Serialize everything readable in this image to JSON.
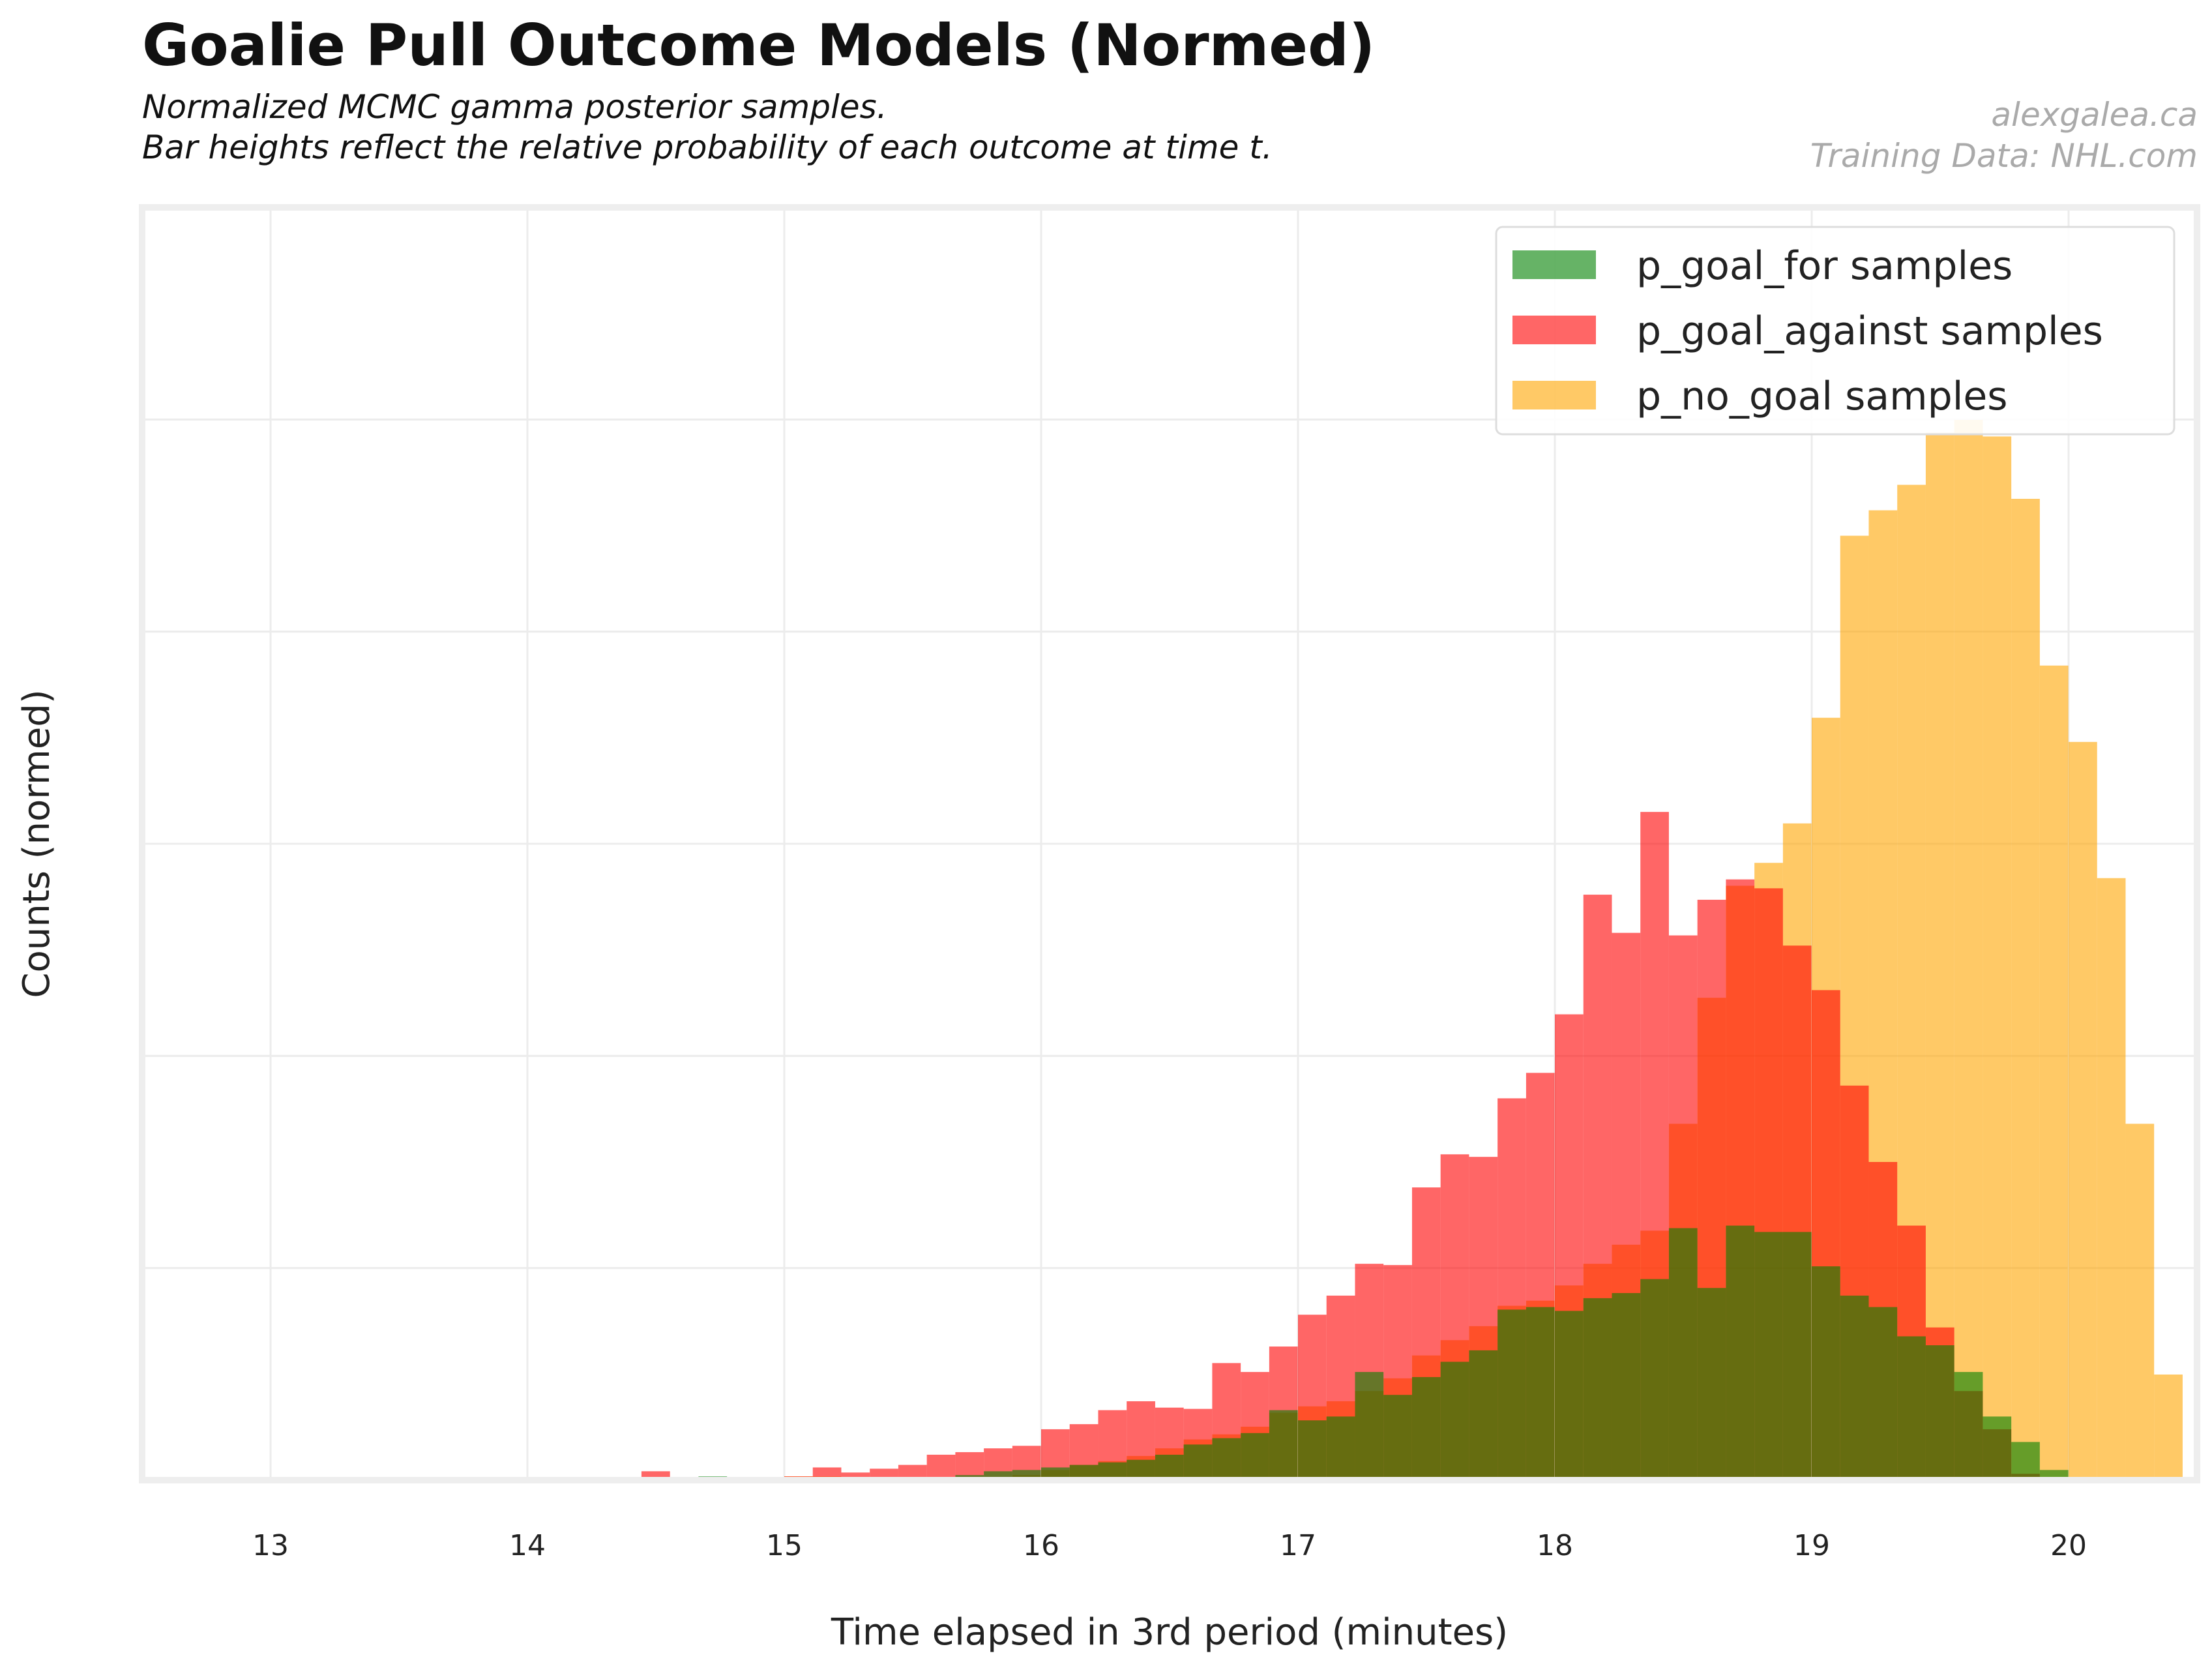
{
  "header": {
    "title": "Goalie Pull Outcome Models (Normed)",
    "subtitle_line1": "Normalized MCMC gamma posterior samples.",
    "subtitle_line2": "Bar heights reflect the relative probability of each outcome at time t.",
    "credit_line1": "alexgalea.ca",
    "credit_line2": "Training Data: NHL.com"
  },
  "chart_data": {
    "type": "bar",
    "subtype": "overlapping-step-histogram",
    "xlabel": "Time elapsed in 3rd period (minutes)",
    "ylabel": "Counts (normed)",
    "xlim": [
      12.5,
      20.5
    ],
    "ylim": [
      0,
      1.0
    ],
    "x_ticks": [
      "13",
      "14",
      "15",
      "16",
      "17",
      "18",
      "19",
      "20"
    ],
    "y_ticks_shown": false,
    "y_gridlines": [
      0.1667,
      0.3333,
      0.5,
      0.6667,
      0.8333
    ],
    "grid": true,
    "legend_position": "top-right",
    "bin_width": 0.111,
    "series": [
      {
        "name": "p_no_goal samples",
        "color": "#ffa500",
        "opacity": 0.6,
        "bins": [
          [
            15.0,
            0.003
          ],
          [
            15.111,
            0.003
          ],
          [
            15.222,
            0.001
          ],
          [
            15.333,
            0.001
          ],
          [
            15.444,
            0.001
          ],
          [
            15.555,
            0.001
          ],
          [
            15.666,
            0.001
          ],
          [
            15.777,
            0.002
          ],
          [
            15.888,
            0.004
          ],
          [
            16.0,
            0.008
          ],
          [
            16.111,
            0.012
          ],
          [
            16.222,
            0.015
          ],
          [
            16.333,
            0.019
          ],
          [
            16.444,
            0.025
          ],
          [
            16.555,
            0.032
          ],
          [
            16.666,
            0.036
          ],
          [
            16.777,
            0.042
          ],
          [
            16.888,
            0.053
          ],
          [
            17.0,
            0.058
          ],
          [
            17.111,
            0.062
          ],
          [
            17.222,
            0.07
          ],
          [
            17.333,
            0.08
          ],
          [
            17.444,
            0.098
          ],
          [
            17.555,
            0.11
          ],
          [
            17.666,
            0.121
          ],
          [
            17.777,
            0.137
          ],
          [
            17.888,
            0.141
          ],
          [
            18.0,
            0.153
          ],
          [
            18.111,
            0.17
          ],
          [
            18.222,
            0.185
          ],
          [
            18.333,
            0.196
          ],
          [
            18.444,
            0.28
          ],
          [
            18.555,
            0.379
          ],
          [
            18.666,
            0.467
          ],
          [
            18.777,
            0.485
          ],
          [
            18.888,
            0.516
          ],
          [
            19.0,
            0.599
          ],
          [
            19.111,
            0.742
          ],
          [
            19.222,
            0.762
          ],
          [
            19.333,
            0.782
          ],
          [
            19.444,
            0.823
          ],
          [
            19.555,
            0.833
          ],
          [
            19.666,
            0.82
          ],
          [
            19.777,
            0.771
          ],
          [
            19.888,
            0.64
          ],
          [
            20.0,
            0.58
          ],
          [
            20.111,
            0.473
          ],
          [
            20.222,
            0.28
          ],
          [
            20.333,
            0.083
          ]
        ]
      },
      {
        "name": "p_goal_against samples",
        "color": "#ff0000",
        "opacity": 0.6,
        "bins": [
          [
            14.444,
            0.007
          ],
          [
            14.555,
            0.002
          ],
          [
            14.666,
            0.001
          ],
          [
            14.777,
            0.002
          ],
          [
            14.888,
            0.002
          ],
          [
            15.0,
            0.003
          ],
          [
            15.111,
            0.01
          ],
          [
            15.222,
            0.006
          ],
          [
            15.333,
            0.009
          ],
          [
            15.444,
            0.012
          ],
          [
            15.555,
            0.02
          ],
          [
            15.666,
            0.022
          ],
          [
            15.777,
            0.025
          ],
          [
            15.888,
            0.027
          ],
          [
            16.0,
            0.04
          ],
          [
            16.111,
            0.044
          ],
          [
            16.222,
            0.055
          ],
          [
            16.333,
            0.062
          ],
          [
            16.444,
            0.057
          ],
          [
            16.555,
            0.056
          ],
          [
            16.666,
            0.092
          ],
          [
            16.777,
            0.085
          ],
          [
            16.888,
            0.105
          ],
          [
            17.0,
            0.13
          ],
          [
            17.111,
            0.145
          ],
          [
            17.222,
            0.17
          ],
          [
            17.333,
            0.169
          ],
          [
            17.444,
            0.23
          ],
          [
            17.555,
            0.256
          ],
          [
            17.666,
            0.254
          ],
          [
            17.777,
            0.3
          ],
          [
            17.888,
            0.32
          ],
          [
            18.0,
            0.366
          ],
          [
            18.111,
            0.46
          ],
          [
            18.222,
            0.43
          ],
          [
            18.333,
            0.525
          ],
          [
            18.444,
            0.428
          ],
          [
            18.555,
            0.456
          ],
          [
            18.666,
            0.472
          ],
          [
            18.777,
            0.465
          ],
          [
            18.888,
            0.42
          ],
          [
            19.0,
            0.385
          ],
          [
            19.111,
            0.31
          ],
          [
            19.222,
            0.25
          ],
          [
            19.333,
            0.2
          ],
          [
            19.444,
            0.12
          ],
          [
            19.555,
            0.07
          ],
          [
            19.666,
            0.04
          ],
          [
            19.777,
            0.005
          ]
        ]
      },
      {
        "name": "p_goal_for samples",
        "color": "#008000",
        "opacity": 0.6,
        "bins": [
          [
            13.777,
            0.002
          ],
          [
            13.888,
            0.001
          ],
          [
            14.0,
            0.001
          ],
          [
            14.111,
            0.001
          ],
          [
            14.222,
            0.001
          ],
          [
            14.333,
            0.001
          ],
          [
            14.444,
            0.001
          ],
          [
            14.555,
            0.002
          ],
          [
            14.666,
            0.003
          ],
          [
            14.777,
            0.001
          ],
          [
            14.888,
            0.001
          ],
          [
            15.0,
            0.001
          ],
          [
            15.111,
            0.002
          ],
          [
            15.222,
            0.001
          ],
          [
            15.333,
            0.002
          ],
          [
            15.444,
            0.001
          ],
          [
            15.555,
            0.002
          ],
          [
            15.666,
            0.004
          ],
          [
            15.777,
            0.007
          ],
          [
            15.888,
            0.008
          ],
          [
            16.0,
            0.01
          ],
          [
            16.111,
            0.012
          ],
          [
            16.222,
            0.014
          ],
          [
            16.333,
            0.016
          ],
          [
            16.444,
            0.02
          ],
          [
            16.555,
            0.028
          ],
          [
            16.666,
            0.033
          ],
          [
            16.777,
            0.037
          ],
          [
            16.888,
            0.055
          ],
          [
            17.0,
            0.047
          ],
          [
            17.111,
            0.05
          ],
          [
            17.222,
            0.085
          ],
          [
            17.333,
            0.067
          ],
          [
            17.444,
            0.081
          ],
          [
            17.555,
            0.093
          ],
          [
            17.666,
            0.102
          ],
          [
            17.777,
            0.134
          ],
          [
            17.888,
            0.136
          ],
          [
            18.0,
            0.133
          ],
          [
            18.111,
            0.143
          ],
          [
            18.222,
            0.147
          ],
          [
            18.333,
            0.158
          ],
          [
            18.444,
            0.198
          ],
          [
            18.555,
            0.151
          ],
          [
            18.666,
            0.2
          ],
          [
            18.777,
            0.195
          ],
          [
            18.888,
            0.195
          ],
          [
            19.0,
            0.168
          ],
          [
            19.111,
            0.145
          ],
          [
            19.222,
            0.136
          ],
          [
            19.333,
            0.113
          ],
          [
            19.444,
            0.106
          ],
          [
            19.555,
            0.085
          ],
          [
            19.666,
            0.05
          ],
          [
            19.777,
            0.03
          ],
          [
            19.888,
            0.008
          ]
        ]
      }
    ],
    "legend": [
      {
        "label": "p_goal_for samples",
        "color": "#008000"
      },
      {
        "label": "p_goal_against samples",
        "color": "#ff0000"
      },
      {
        "label": "p_no_goal samples",
        "color": "#ffa500"
      }
    ]
  }
}
